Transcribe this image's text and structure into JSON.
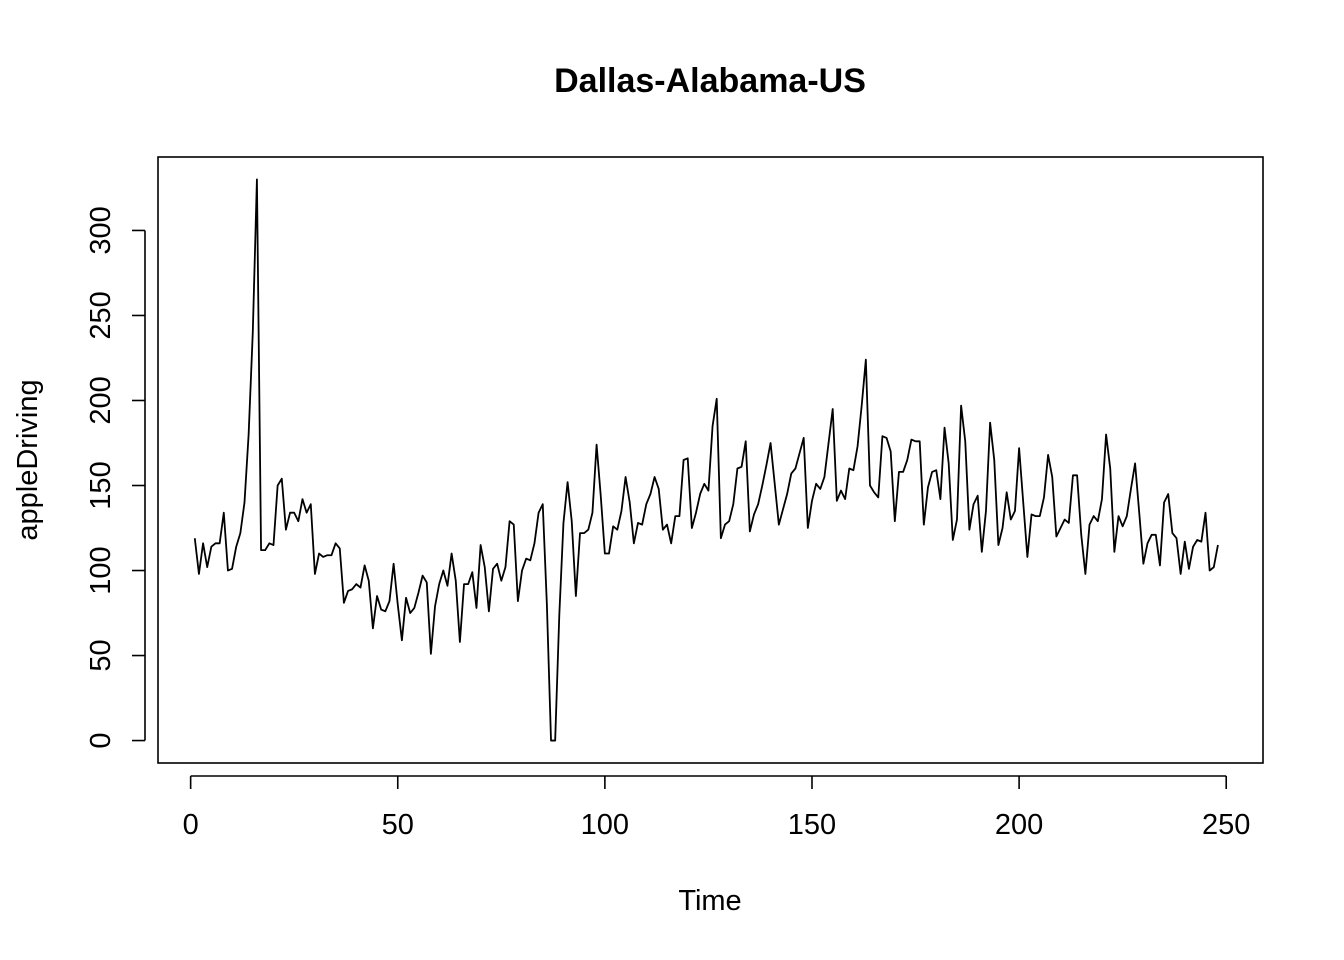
{
  "chart_data": {
    "type": "line",
    "title": "Dallas-Alabama-US",
    "xlabel": "Time",
    "ylabel": "appleDriving",
    "xlim": [
      -7.88,
      258.88
    ],
    "ylim": [
      -13.2,
      343.2
    ],
    "x_ticks": [
      0,
      50,
      100,
      150,
      200,
      250
    ],
    "x_tick_labels": [
      "0",
      "50",
      "100",
      "150",
      "200",
      "250"
    ],
    "y_ticks": [
      0,
      50,
      100,
      150,
      200,
      250,
      300
    ],
    "y_tick_labels": [
      "0",
      "50",
      "100",
      "150",
      "200",
      "250",
      "300"
    ],
    "grid": false,
    "legend": "none",
    "series": [
      {
        "color": "#000000",
        "x_start": 1,
        "values": [
          119,
          98,
          116,
          102,
          114,
          116,
          116,
          134,
          100,
          101,
          114,
          122,
          140,
          180,
          240,
          330,
          112,
          112,
          116,
          115,
          150,
          154,
          124,
          134,
          134,
          129,
          142,
          134,
          139,
          98,
          110,
          108,
          109,
          109,
          116,
          113,
          81,
          88,
          89,
          92,
          90,
          103,
          94,
          66,
          85,
          77,
          76,
          82,
          104,
          80,
          59,
          84,
          75,
          78,
          87,
          97,
          93,
          51,
          79,
          92,
          100,
          91,
          110,
          94,
          58,
          92,
          92,
          99,
          78,
          115,
          102,
          76,
          101,
          104,
          94,
          102,
          129,
          127,
          82,
          100,
          107,
          106,
          116,
          134,
          139,
          80,
          0,
          0,
          74,
          128,
          152,
          129,
          85,
          122,
          122,
          124,
          134,
          174,
          144,
          110,
          110,
          126,
          124,
          135,
          155,
          140,
          116,
          128,
          127,
          139,
          145,
          155,
          148,
          124,
          127,
          116,
          132,
          132,
          165,
          166,
          125,
          134,
          145,
          151,
          147,
          185,
          201,
          119,
          127,
          129,
          139,
          160,
          161,
          176,
          123,
          133,
          139,
          150,
          162,
          175,
          151,
          127,
          136,
          145,
          157,
          160,
          169,
          178,
          125,
          141,
          151,
          148,
          155,
          175,
          195,
          141,
          147,
          142,
          160,
          159,
          173,
          197,
          224,
          150,
          146,
          143,
          179,
          178,
          170,
          129,
          158,
          158,
          165,
          177,
          176,
          176,
          127,
          149,
          158,
          159,
          142,
          184,
          163,
          118,
          130,
          197,
          176,
          124,
          139,
          144,
          111,
          135,
          187,
          165,
          115,
          125,
          146,
          130,
          135,
          172,
          140,
          108,
          133,
          132,
          132,
          143,
          168,
          155,
          120,
          125,
          130,
          128,
          156,
          156,
          121,
          98,
          127,
          132,
          129,
          142,
          180,
          160,
          111,
          132,
          126,
          132,
          148,
          163,
          134,
          104,
          116,
          121,
          121,
          103,
          140,
          145,
          122,
          119,
          98,
          117,
          101,
          114,
          118,
          117,
          134,
          100,
          102,
          115
        ]
      }
    ]
  }
}
